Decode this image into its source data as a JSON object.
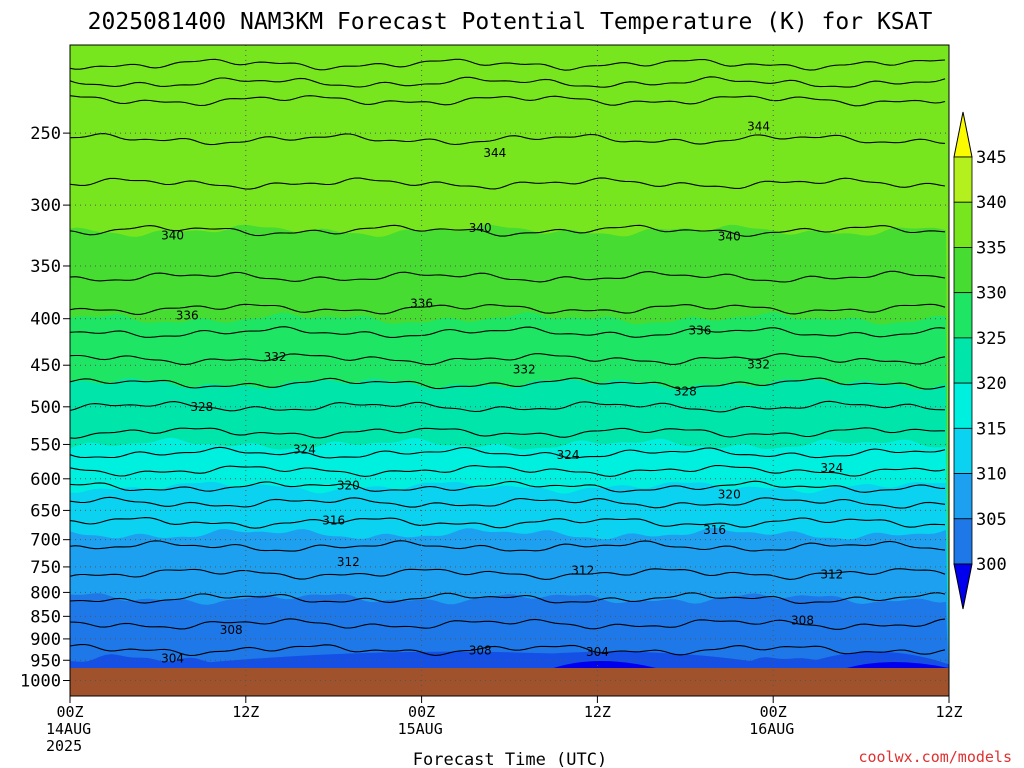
{
  "chart_data": {
    "type": "heatmap",
    "title": "2025081400 NAM3KM Forecast Potential Temperature (K) for KSAT",
    "xlabel": "Forecast Time (UTC)",
    "ylabel": "",
    "x_range_hours": [
      0,
      60
    ],
    "y_axis": {
      "scale": "log",
      "reversed": true,
      "range": [
        1040,
        200
      ],
      "ticks": [
        "250",
        "300",
        "350",
        "400",
        "450",
        "500",
        "550",
        "600",
        "650",
        "700",
        "750",
        "800",
        "850",
        "900",
        "950",
        "1000"
      ]
    },
    "x_ticks": [
      {
        "hour": 0,
        "lines": [
          "00Z",
          "14AUG",
          "2025"
        ]
      },
      {
        "hour": 12,
        "lines": [
          "12Z"
        ]
      },
      {
        "hour": 24,
        "lines": [
          "00Z",
          "15AUG"
        ]
      },
      {
        "hour": 36,
        "lines": [
          "12Z"
        ]
      },
      {
        "hour": 48,
        "lines": [
          "00Z",
          "16AUG"
        ]
      },
      {
        "hour": 60,
        "lines": [
          "12Z"
        ]
      }
    ],
    "colorbar": {
      "levels": [
        300,
        305,
        310,
        315,
        320,
        325,
        330,
        335,
        340,
        345
      ],
      "labels": [
        "300",
        "305",
        "310",
        "315",
        "320",
        "325",
        "330",
        "335",
        "340",
        "345"
      ],
      "colors": [
        "#0000ee",
        "#1450e6",
        "#1e78e8",
        "#1ea0f0",
        "#0ad2f0",
        "#00f0e0",
        "#00e6aa",
        "#1ee664",
        "#46dc32",
        "#78e61e",
        "#b4f01e",
        "#fafa00"
      ],
      "extend": "both"
    },
    "contour_labels": [
      {
        "value": "344",
        "hour": 29,
        "p": 263
      },
      {
        "value": "344",
        "hour": 47,
        "p": 246
      },
      {
        "value": "340",
        "hour": 7,
        "p": 324
      },
      {
        "value": "340",
        "hour": 28,
        "p": 318
      },
      {
        "value": "340",
        "hour": 45,
        "p": 325
      },
      {
        "value": "336",
        "hour": 8,
        "p": 397
      },
      {
        "value": "336",
        "hour": 24,
        "p": 385
      },
      {
        "value": "336",
        "hour": 43,
        "p": 412
      },
      {
        "value": "332",
        "hour": 14,
        "p": 441
      },
      {
        "value": "332",
        "hour": 31,
        "p": 455
      },
      {
        "value": "332",
        "hour": 47,
        "p": 449
      },
      {
        "value": "328",
        "hour": 9,
        "p": 500
      },
      {
        "value": "328",
        "hour": 42,
        "p": 481
      },
      {
        "value": "324",
        "hour": 16,
        "p": 557
      },
      {
        "value": "324",
        "hour": 34,
        "p": 565
      },
      {
        "value": "324",
        "hour": 52,
        "p": 584
      },
      {
        "value": "320",
        "hour": 19,
        "p": 610
      },
      {
        "value": "320",
        "hour": 45,
        "p": 624
      },
      {
        "value": "316",
        "hour": 18,
        "p": 667
      },
      {
        "value": "316",
        "hour": 44,
        "p": 683
      },
      {
        "value": "312",
        "hour": 19,
        "p": 741
      },
      {
        "value": "312",
        "hour": 35,
        "p": 757
      },
      {
        "value": "312",
        "hour": 52,
        "p": 765
      },
      {
        "value": "308",
        "hour": 11,
        "p": 880
      },
      {
        "value": "308",
        "hour": 28,
        "p": 927
      },
      {
        "value": "308",
        "hour": 50,
        "p": 859
      },
      {
        "value": "304",
        "hour": 7,
        "p": 946
      },
      {
        "value": "304",
        "hour": 36,
        "p": 930
      }
    ]
  },
  "credit": "coolwx.com/models",
  "colors": {
    "ground": "#a0522d",
    "credit": "#e03030",
    "grid": "#555555",
    "contour": "#000000",
    "background": "#ffffff"
  }
}
